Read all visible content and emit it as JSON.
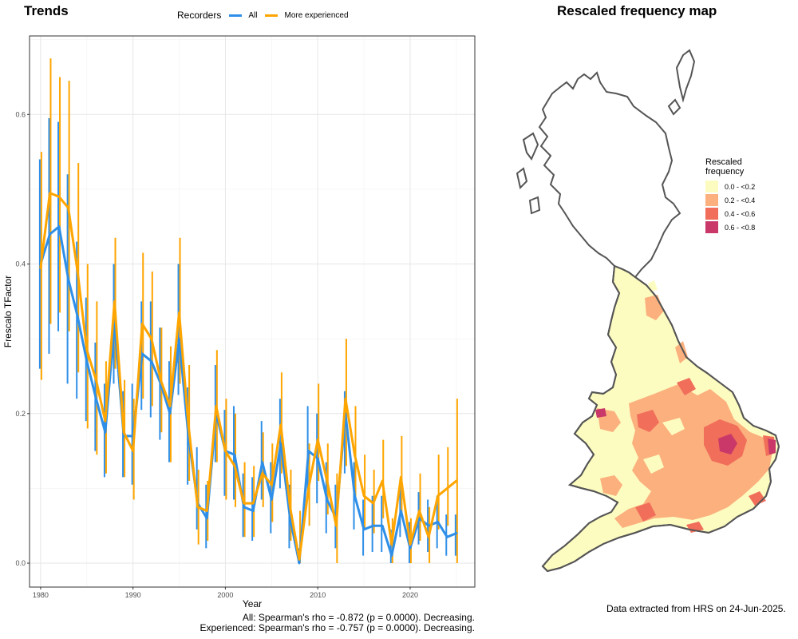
{
  "trends_title": "Trends",
  "map_title": "Rescaled frequency map",
  "legend": {
    "title": "Recorders",
    "items": [
      {
        "label": "All",
        "color": "#2f8fe8"
      },
      {
        "label": "More experienced",
        "color": "#ffa500"
      }
    ]
  },
  "stats": {
    "line1": "All: Spearman's rho = -0.872 (p = 0.0000). Decreasing.",
    "line2": "Experienced: Spearman's rho = -0.757 (p = 0.0000). Decreasing."
  },
  "extract_note": "Data extracted from HRS on 24-Jun-2025.",
  "map_legend": {
    "title_line1": "Rescaled",
    "title_line2": "frequency",
    "items": [
      {
        "label": "0.0 - <0.2",
        "color": "#fdfcc0"
      },
      {
        "label": "0.2 - <0.4",
        "color": "#fbb07e"
      },
      {
        "label": "0.4 - <0.6",
        "color": "#f06e5a"
      },
      {
        "label": "0.6 - <0.8",
        "color": "#c93868"
      }
    ]
  },
  "chart_data": {
    "type": "line",
    "xlabel": "Year",
    "ylabel": "Frescalo TFactor",
    "xlim": [
      1978.8,
      2027
    ],
    "ylim": [
      -0.032,
      0.705
    ],
    "xticks": [
      1980,
      1990,
      2000,
      2010,
      2020
    ],
    "yticks": [
      0.0,
      0.2,
      0.4,
      0.6
    ],
    "grid": true,
    "legend_position": "top",
    "x": [
      1980,
      1981,
      1982,
      1983,
      1984,
      1985,
      1986,
      1987,
      1988,
      1989,
      1990,
      1991,
      1992,
      1993,
      1994,
      1995,
      1996,
      1997,
      1998,
      1999,
      2000,
      2001,
      2002,
      2003,
      2004,
      2005,
      2006,
      2007,
      2008,
      2009,
      2010,
      2011,
      2012,
      2013,
      2014,
      2015,
      2016,
      2017,
      2018,
      2019,
      2020,
      2021,
      2022,
      2023,
      2024,
      2025
    ],
    "series": [
      {
        "name": "All",
        "color": "#2f8fe8",
        "values": [
          0.4,
          0.44,
          0.45,
          0.38,
          0.33,
          0.27,
          0.22,
          0.175,
          0.32,
          0.17,
          0.17,
          0.28,
          0.27,
          0.24,
          0.2,
          0.3,
          0.17,
          0.08,
          0.06,
          0.2,
          0.15,
          0.145,
          0.075,
          0.07,
          0.135,
          0.085,
          0.16,
          0.06,
          0.0,
          0.15,
          0.14,
          0.085,
          0.06,
          0.2,
          0.09,
          0.045,
          0.05,
          0.05,
          0.01,
          0.07,
          0.02,
          0.06,
          0.05,
          0.055,
          0.035,
          0.04
        ],
        "lower": [
          0.26,
          0.28,
          0.31,
          0.24,
          0.22,
          0.19,
          0.15,
          0.115,
          0.24,
          0.115,
          0.105,
          0.205,
          0.195,
          0.165,
          0.135,
          0.225,
          0.105,
          0.045,
          0.02,
          0.135,
          0.09,
          0.085,
          0.035,
          0.03,
          0.085,
          0.04,
          0.1,
          0.02,
          0.0,
          0.09,
          0.08,
          0.04,
          0.02,
          0.12,
          0.045,
          0.01,
          0.015,
          0.015,
          0.0,
          0.035,
          0.0,
          0.025,
          0.015,
          0.02,
          0.01,
          0.01
        ],
        "upper": [
          0.54,
          0.595,
          0.59,
          0.52,
          0.43,
          0.355,
          0.295,
          0.24,
          0.4,
          0.23,
          0.24,
          0.35,
          0.35,
          0.315,
          0.27,
          0.4,
          0.235,
          0.155,
          0.105,
          0.265,
          0.205,
          0.21,
          0.12,
          0.115,
          0.19,
          0.135,
          0.22,
          0.105,
          0.02,
          0.21,
          0.2,
          0.135,
          0.105,
          0.23,
          0.135,
          0.085,
          0.09,
          0.09,
          0.045,
          0.105,
          0.055,
          0.095,
          0.085,
          0.09,
          0.065,
          0.065
        ]
      },
      {
        "name": "More experienced",
        "color": "#ffa500",
        "values": [
          0.395,
          0.495,
          0.49,
          0.475,
          0.39,
          0.285,
          0.245,
          0.19,
          0.35,
          0.175,
          0.15,
          0.32,
          0.3,
          0.245,
          0.21,
          0.335,
          0.185,
          0.075,
          0.07,
          0.21,
          0.15,
          0.13,
          0.08,
          0.08,
          0.12,
          0.105,
          0.185,
          0.075,
          0.005,
          0.1,
          0.165,
          0.11,
          0.05,
          0.22,
          0.145,
          0.09,
          0.08,
          0.11,
          0.025,
          0.115,
          0.025,
          0.07,
          0.035,
          0.09,
          0.1,
          0.11
        ],
        "lower": [
          0.245,
          0.32,
          0.335,
          0.31,
          0.255,
          0.18,
          0.145,
          0.12,
          0.26,
          0.115,
          0.085,
          0.22,
          0.21,
          0.175,
          0.135,
          0.24,
          0.11,
          0.025,
          0.03,
          0.135,
          0.085,
          0.075,
          0.035,
          0.035,
          0.075,
          0.055,
          0.12,
          0.03,
          0.0,
          0.05,
          0.11,
          0.065,
          0.0,
          0.13,
          0.085,
          0.045,
          0.04,
          0.06,
          0.0,
          0.065,
          0.0,
          0.03,
          0.0,
          0.045,
          0.05,
          0.0
        ],
        "upper": [
          0.55,
          0.675,
          0.65,
          0.645,
          0.535,
          0.4,
          0.35,
          0.27,
          0.435,
          0.245,
          0.22,
          0.415,
          0.39,
          0.315,
          0.29,
          0.435,
          0.265,
          0.125,
          0.11,
          0.285,
          0.22,
          0.2,
          0.135,
          0.13,
          0.175,
          0.16,
          0.255,
          0.125,
          0.07,
          0.16,
          0.24,
          0.16,
          0.12,
          0.3,
          0.21,
          0.145,
          0.125,
          0.165,
          0.06,
          0.17,
          0.06,
          0.12,
          0.075,
          0.145,
          0.155,
          0.22
        ]
      }
    ]
  }
}
